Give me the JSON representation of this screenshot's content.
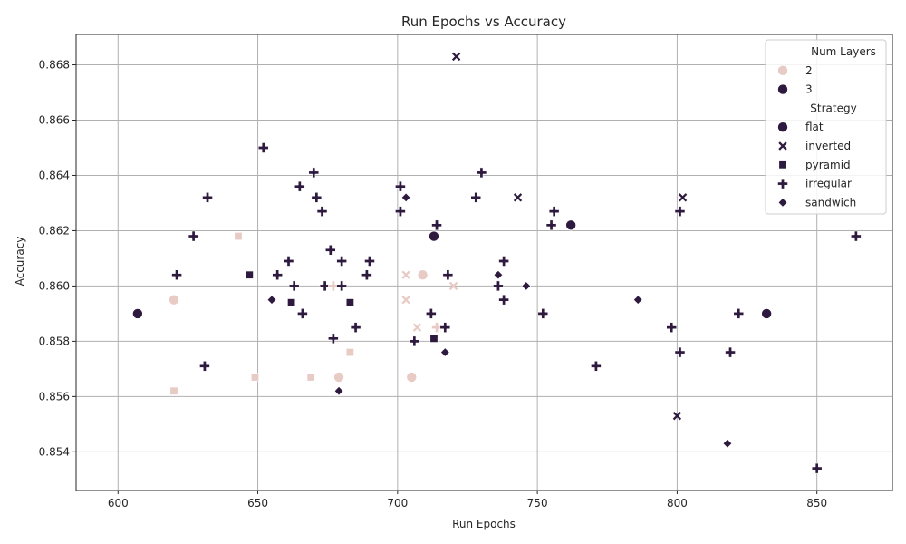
{
  "chart_data": {
    "type": "scatter",
    "title": "Run Epochs vs Accuracy",
    "xlabel": "Run Epochs",
    "ylabel": "Accuracy",
    "xlim": [
      585,
      877
    ],
    "ylim": [
      0.8526,
      0.8691
    ],
    "xticks": [
      600,
      650,
      700,
      750,
      800,
      850
    ],
    "yticks": [
      0.854,
      0.856,
      0.858,
      0.86,
      0.862,
      0.864,
      0.866,
      0.868
    ],
    "grid": true,
    "legend_position": "top-right",
    "hue": {
      "title": "Num Layers",
      "entries": [
        {
          "label": "2",
          "value": 2,
          "color": "#e8cbc5"
        },
        {
          "label": "3",
          "value": 3,
          "color": "#2e1a3f"
        }
      ]
    },
    "style": {
      "title": "Strategy",
      "entries": [
        {
          "label": "flat",
          "marker": "circle"
        },
        {
          "label": "inverted",
          "marker": "x"
        },
        {
          "label": "pyramid",
          "marker": "square"
        },
        {
          "label": "irregular",
          "marker": "plus"
        },
        {
          "label": "sandwich",
          "marker": "diamond"
        }
      ]
    },
    "points": [
      {
        "x": 607,
        "y": 0.859,
        "layers": 3,
        "strategy": "flat"
      },
      {
        "x": 620,
        "y": 0.8595,
        "layers": 2,
        "strategy": "flat"
      },
      {
        "x": 620,
        "y": 0.8562,
        "layers": 2,
        "strategy": "pyramid"
      },
      {
        "x": 621,
        "y": 0.8604,
        "layers": 3,
        "strategy": "irregular"
      },
      {
        "x": 627,
        "y": 0.8618,
        "layers": 3,
        "strategy": "irregular"
      },
      {
        "x": 631,
        "y": 0.8571,
        "layers": 3,
        "strategy": "irregular"
      },
      {
        "x": 632,
        "y": 0.8632,
        "layers": 3,
        "strategy": "irregular"
      },
      {
        "x": 643,
        "y": 0.8618,
        "layers": 2,
        "strategy": "pyramid"
      },
      {
        "x": 647,
        "y": 0.8604,
        "layers": 3,
        "strategy": "pyramid"
      },
      {
        "x": 649,
        "y": 0.8567,
        "layers": 2,
        "strategy": "pyramid"
      },
      {
        "x": 652,
        "y": 0.865,
        "layers": 3,
        "strategy": "irregular"
      },
      {
        "x": 655,
        "y": 0.8595,
        "layers": 3,
        "strategy": "sandwich"
      },
      {
        "x": 657,
        "y": 0.8604,
        "layers": 3,
        "strategy": "irregular"
      },
      {
        "x": 661,
        "y": 0.8609,
        "layers": 3,
        "strategy": "irregular"
      },
      {
        "x": 662,
        "y": 0.8594,
        "layers": 3,
        "strategy": "pyramid"
      },
      {
        "x": 663,
        "y": 0.86,
        "layers": 3,
        "strategy": "irregular"
      },
      {
        "x": 665,
        "y": 0.8636,
        "layers": 3,
        "strategy": "irregular"
      },
      {
        "x": 666,
        "y": 0.859,
        "layers": 3,
        "strategy": "irregular"
      },
      {
        "x": 669,
        "y": 0.8567,
        "layers": 2,
        "strategy": "pyramid"
      },
      {
        "x": 670,
        "y": 0.8641,
        "layers": 3,
        "strategy": "irregular"
      },
      {
        "x": 671,
        "y": 0.8632,
        "layers": 3,
        "strategy": "irregular"
      },
      {
        "x": 673,
        "y": 0.8627,
        "layers": 3,
        "strategy": "irregular"
      },
      {
        "x": 674,
        "y": 0.86,
        "layers": 3,
        "strategy": "irregular"
      },
      {
        "x": 676,
        "y": 0.8613,
        "layers": 3,
        "strategy": "irregular"
      },
      {
        "x": 677,
        "y": 0.8581,
        "layers": 3,
        "strategy": "irregular"
      },
      {
        "x": 677,
        "y": 0.86,
        "layers": 2,
        "strategy": "irregular"
      },
      {
        "x": 679,
        "y": 0.8567,
        "layers": 2,
        "strategy": "flat"
      },
      {
        "x": 679,
        "y": 0.8562,
        "layers": 3,
        "strategy": "sandwich"
      },
      {
        "x": 680,
        "y": 0.8609,
        "layers": 3,
        "strategy": "irregular"
      },
      {
        "x": 680,
        "y": 0.86,
        "layers": 3,
        "strategy": "irregular"
      },
      {
        "x": 683,
        "y": 0.8594,
        "layers": 3,
        "strategy": "pyramid"
      },
      {
        "x": 683,
        "y": 0.8576,
        "layers": 2,
        "strategy": "pyramid"
      },
      {
        "x": 685,
        "y": 0.8585,
        "layers": 3,
        "strategy": "irregular"
      },
      {
        "x": 689,
        "y": 0.8604,
        "layers": 3,
        "strategy": "irregular"
      },
      {
        "x": 690,
        "y": 0.8609,
        "layers": 3,
        "strategy": "irregular"
      },
      {
        "x": 701,
        "y": 0.8636,
        "layers": 3,
        "strategy": "irregular"
      },
      {
        "x": 701,
        "y": 0.8627,
        "layers": 3,
        "strategy": "irregular"
      },
      {
        "x": 703,
        "y": 0.8632,
        "layers": 3,
        "strategy": "sandwich"
      },
      {
        "x": 703,
        "y": 0.8604,
        "layers": 2,
        "strategy": "inverted"
      },
      {
        "x": 703,
        "y": 0.8595,
        "layers": 2,
        "strategy": "inverted"
      },
      {
        "x": 705,
        "y": 0.8567,
        "layers": 2,
        "strategy": "flat"
      },
      {
        "x": 706,
        "y": 0.858,
        "layers": 3,
        "strategy": "irregular"
      },
      {
        "x": 707,
        "y": 0.8585,
        "layers": 2,
        "strategy": "inverted"
      },
      {
        "x": 709,
        "y": 0.8604,
        "layers": 2,
        "strategy": "flat"
      },
      {
        "x": 712,
        "y": 0.859,
        "layers": 3,
        "strategy": "irregular"
      },
      {
        "x": 713,
        "y": 0.8618,
        "layers": 3,
        "strategy": "flat"
      },
      {
        "x": 713,
        "y": 0.8581,
        "layers": 3,
        "strategy": "pyramid"
      },
      {
        "x": 714,
        "y": 0.8622,
        "layers": 3,
        "strategy": "irregular"
      },
      {
        "x": 714,
        "y": 0.8585,
        "layers": 2,
        "strategy": "irregular"
      },
      {
        "x": 717,
        "y": 0.8585,
        "layers": 3,
        "strategy": "irregular"
      },
      {
        "x": 717,
        "y": 0.8576,
        "layers": 3,
        "strategy": "sandwich"
      },
      {
        "x": 718,
        "y": 0.8604,
        "layers": 3,
        "strategy": "irregular"
      },
      {
        "x": 720,
        "y": 0.86,
        "layers": 2,
        "strategy": "inverted"
      },
      {
        "x": 721,
        "y": 0.8683,
        "layers": 3,
        "strategy": "inverted"
      },
      {
        "x": 728,
        "y": 0.8632,
        "layers": 3,
        "strategy": "irregular"
      },
      {
        "x": 730,
        "y": 0.8641,
        "layers": 3,
        "strategy": "irregular"
      },
      {
        "x": 736,
        "y": 0.8604,
        "layers": 3,
        "strategy": "sandwich"
      },
      {
        "x": 736,
        "y": 0.86,
        "layers": 3,
        "strategy": "irregular"
      },
      {
        "x": 738,
        "y": 0.8609,
        "layers": 3,
        "strategy": "irregular"
      },
      {
        "x": 738,
        "y": 0.8595,
        "layers": 3,
        "strategy": "irregular"
      },
      {
        "x": 743,
        "y": 0.8632,
        "layers": 3,
        "strategy": "inverted"
      },
      {
        "x": 746,
        "y": 0.86,
        "layers": 3,
        "strategy": "sandwich"
      },
      {
        "x": 752,
        "y": 0.859,
        "layers": 3,
        "strategy": "irregular"
      },
      {
        "x": 755,
        "y": 0.8622,
        "layers": 3,
        "strategy": "irregular"
      },
      {
        "x": 756,
        "y": 0.8627,
        "layers": 3,
        "strategy": "irregular"
      },
      {
        "x": 762,
        "y": 0.8622,
        "layers": 3,
        "strategy": "flat"
      },
      {
        "x": 771,
        "y": 0.8571,
        "layers": 3,
        "strategy": "irregular"
      },
      {
        "x": 786,
        "y": 0.8595,
        "layers": 3,
        "strategy": "sandwich"
      },
      {
        "x": 798,
        "y": 0.8585,
        "layers": 3,
        "strategy": "irregular"
      },
      {
        "x": 800,
        "y": 0.8553,
        "layers": 3,
        "strategy": "inverted"
      },
      {
        "x": 801,
        "y": 0.8627,
        "layers": 3,
        "strategy": "irregular"
      },
      {
        "x": 801,
        "y": 0.8576,
        "layers": 3,
        "strategy": "irregular"
      },
      {
        "x": 802,
        "y": 0.8632,
        "layers": 3,
        "strategy": "inverted"
      },
      {
        "x": 818,
        "y": 0.8543,
        "layers": 3,
        "strategy": "sandwich"
      },
      {
        "x": 819,
        "y": 0.8576,
        "layers": 3,
        "strategy": "irregular"
      },
      {
        "x": 822,
        "y": 0.859,
        "layers": 3,
        "strategy": "irregular"
      },
      {
        "x": 832,
        "y": 0.859,
        "layers": 3,
        "strategy": "flat"
      },
      {
        "x": 850,
        "y": 0.8534,
        "layers": 3,
        "strategy": "irregular"
      },
      {
        "x": 864,
        "y": 0.8618,
        "layers": 3,
        "strategy": "irregular"
      }
    ]
  }
}
